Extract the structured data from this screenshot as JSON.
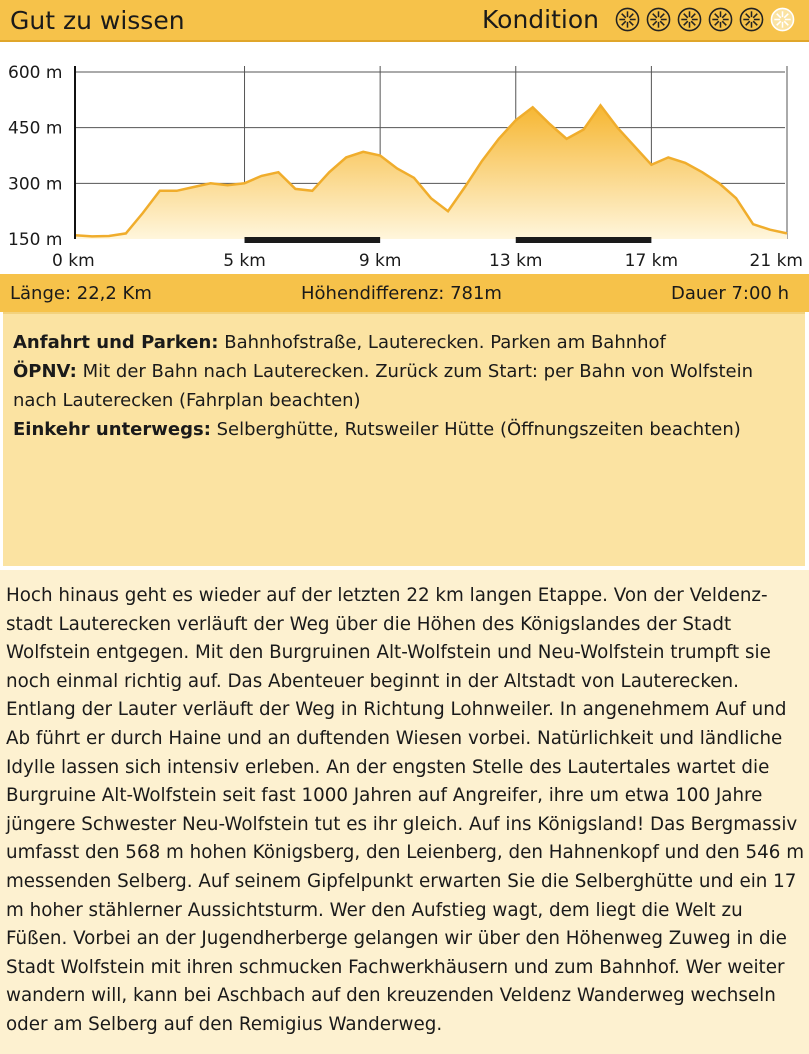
{
  "header": {
    "title": "Gut zu wissen",
    "kondition_label": "Kondition",
    "kondition_rating": 5,
    "kondition_max": 6
  },
  "colors": {
    "header_bg": "#f6c24a",
    "profile_fill_top": "#f5b93a",
    "profile_line": "#f0ad2c",
    "info_bg": "#fbe3a2",
    "text_bg": "#fdf1d0"
  },
  "chart_data": {
    "type": "area",
    "xlabel": "",
    "ylabel": "",
    "xlim": [
      0,
      21
    ],
    "ylim": [
      150,
      600
    ],
    "x_ticks": [
      "0 km",
      "5 km",
      "9 km",
      "13 km",
      "17 km",
      "21 km"
    ],
    "x_tick_values": [
      0,
      5,
      9,
      13,
      17,
      21
    ],
    "y_ticks": [
      "600 m",
      "450 m",
      "300 m",
      "150 m"
    ],
    "y_tick_values": [
      600,
      450,
      300,
      150
    ],
    "grid": true,
    "highlight_segments": [
      [
        5,
        9
      ],
      [
        13,
        17
      ]
    ],
    "x": [
      0,
      0.5,
      1,
      1.5,
      2.0,
      2.5,
      3.0,
      3.5,
      4.0,
      4.5,
      5.0,
      5.5,
      6.0,
      6.5,
      7.0,
      7.5,
      8.0,
      8.5,
      9.0,
      9.5,
      10.0,
      10.5,
      11.0,
      11.5,
      12.0,
      12.5,
      13.0,
      13.5,
      14.0,
      14.5,
      15.0,
      15.5,
      16.0,
      16.5,
      17.0,
      17.5,
      18.0,
      18.5,
      19.0,
      19.5,
      20.0,
      20.5,
      21.0
    ],
    "y": [
      160,
      157,
      158,
      165,
      220,
      280,
      280,
      290,
      300,
      295,
      300,
      320,
      330,
      285,
      280,
      330,
      370,
      385,
      375,
      340,
      315,
      260,
      225,
      290,
      360,
      420,
      470,
      505,
      460,
      420,
      445,
      510,
      450,
      400,
      350,
      370,
      355,
      330,
      300,
      260,
      190,
      175,
      165
    ]
  },
  "stats": {
    "length": "Länge: 22,2 Km",
    "elevation": "Höhendifferenz: 781m",
    "duration": "Dauer 7:00 h"
  },
  "info": {
    "parking_label": "Anfahrt und Parken:",
    "parking_text": " Bahnhofstraße, Lauterecken. Parken am Bahnhof",
    "transit_label": "ÖPNV:",
    "transit_text": " Mit der Bahn nach Lauterecken. Zurück zum Start: per Bahn von Wolfstein nach Lauterecken (Fahrplan beachten)",
    "stop_label": "Einkehr unterwegs:",
    "stop_text": " Selberghütte, Rutsweiler Hütte (Öffnungszeiten beachten)"
  },
  "description": "Hoch hinaus geht es wieder auf der letzten 22 km langen Etappe. Von der Veldenz-stadt Lauterecken verläuft der Weg über die Höhen des Königslandes der Stadt Wolfstein entgegen. Mit den Burgruinen Alt-Wolfstein und Neu-Wolfstein trumpft sie noch einmal richtig auf. Das Abenteuer beginnt in der Altstadt von Lauterecken. Entlang der Lauter verläuft der Weg in Richtung Lohnweiler. In angenehmem Auf und Ab führt er durch Haine und an duftenden Wiesen vorbei. Natürlichkeit und ländliche Idylle lassen sich intensiv erleben. An der engsten Stelle des Lautertales wartet die Burgruine Alt-Wolfstein seit fast 1000 Jahren auf Angreifer, ihre um etwa 100 Jahre jüngere Schwester Neu-Wolfstein tut es ihr gleich. Auf ins Königsland! Das Bergmassiv umfasst den 568 m hohen Königsberg, den Leienberg, den Hahnenkopf und den 546 m messenden Selberg. Auf seinem Gipfelpunkt erwarten Sie die Selberghütte und ein 17 m hoher stählerner Aussichtsturm. Wer den Aufstieg wagt, dem liegt die Welt zu Füßen. Vorbei an der Jugendherberge gelangen wir über den Höhenweg Zuweg in die Stadt Wolfstein mit ihren schmucken Fachwerkhäusern und zum Bahnhof. Wer weiter wandern will, kann bei Aschbach auf den kreuzenden Veldenz Wanderweg wechseln oder am Selberg auf den Remigius Wanderweg."
}
